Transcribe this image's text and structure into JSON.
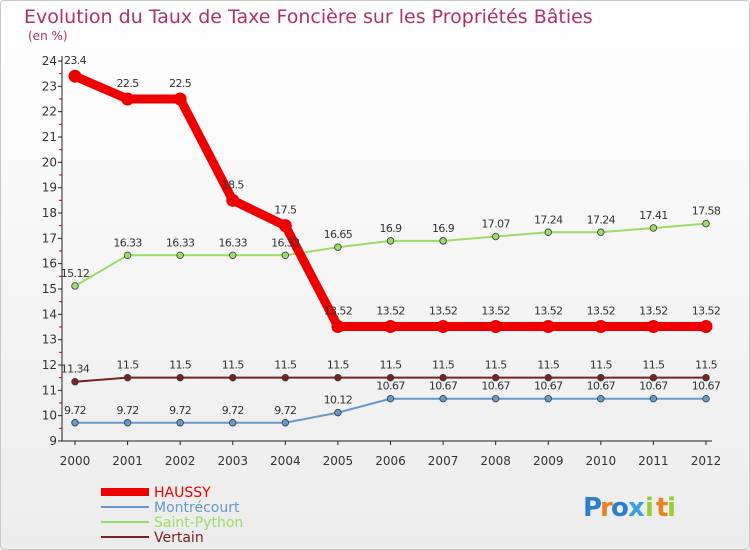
{
  "chart_data": {
    "type": "line",
    "title": "Evolution du Taux de Taxe Foncière sur les Propriétés Bâties",
    "unit_label": "(en %)",
    "xlabel": "",
    "ylabel": "",
    "x": [
      "2000",
      "2001",
      "2002",
      "2003",
      "2004",
      "2005",
      "2006",
      "2007",
      "2008",
      "2009",
      "2010",
      "2011",
      "2012"
    ],
    "ylim": [
      9,
      24
    ],
    "yticks": [
      "9",
      "10",
      "11",
      "12",
      "13",
      "14",
      "15",
      "16",
      "17",
      "18",
      "19",
      "20",
      "21",
      "22",
      "23",
      "24"
    ],
    "series": [
      {
        "name": "HAUSSY",
        "color": "#ee0000",
        "values": [
          23.4,
          22.5,
          22.5,
          18.5,
          17.5,
          13.52,
          13.52,
          13.52,
          13.52,
          13.52,
          13.52,
          13.52,
          13.52
        ],
        "labels": [
          "23.4",
          "22.5",
          "22.5",
          "18.5",
          "17.5",
          "13.52",
          "13.52",
          "13.52",
          "13.52",
          "13.52",
          "13.52",
          "13.52",
          "13.52"
        ]
      },
      {
        "name": "Montrécourt",
        "color": "#6699cc",
        "values": [
          9.72,
          9.72,
          9.72,
          9.72,
          9.72,
          10.12,
          10.67,
          10.67,
          10.67,
          10.67,
          10.67,
          10.67,
          10.67
        ],
        "labels": [
          "9.72",
          "9.72",
          "9.72",
          "9.72",
          "9.72",
          "10.12",
          "10.67",
          "10.67",
          "10.67",
          "10.67",
          "10.67",
          "10.67",
          "10.67"
        ]
      },
      {
        "name": "Saint-Python",
        "color": "#99dd66",
        "values": [
          15.12,
          16.33,
          16.33,
          16.33,
          16.33,
          16.65,
          16.9,
          16.9,
          17.07,
          17.24,
          17.24,
          17.41,
          17.58
        ],
        "labels": [
          "15.12",
          "16.33",
          "16.33",
          "16.33",
          "16.33",
          "16.65",
          "16.9",
          "16.9",
          "17.07",
          "17.24",
          "17.24",
          "17.41",
          "17.58"
        ]
      },
      {
        "name": "Vertain",
        "color": "#772222",
        "values": [
          11.34,
          11.5,
          11.5,
          11.5,
          11.5,
          11.5,
          11.5,
          11.5,
          11.5,
          11.5,
          11.5,
          11.5,
          11.5
        ],
        "labels": [
          "11.34",
          "11.5",
          "11.5",
          "11.5",
          "11.5",
          "11.5",
          "11.5",
          "11.5",
          "11.5",
          "11.5",
          "11.5",
          "11.5",
          "11.5"
        ]
      }
    ],
    "legend_position": "bottom-left"
  },
  "brand": {
    "letters": [
      "P",
      "r",
      "o",
      "x",
      "i",
      "t",
      "i"
    ],
    "colors": [
      "#2a7fd4",
      "#e6841f",
      "#2a7fd4",
      "#3aa0e0",
      "#99cc33",
      "#e6841f",
      "#99cc33"
    ]
  }
}
